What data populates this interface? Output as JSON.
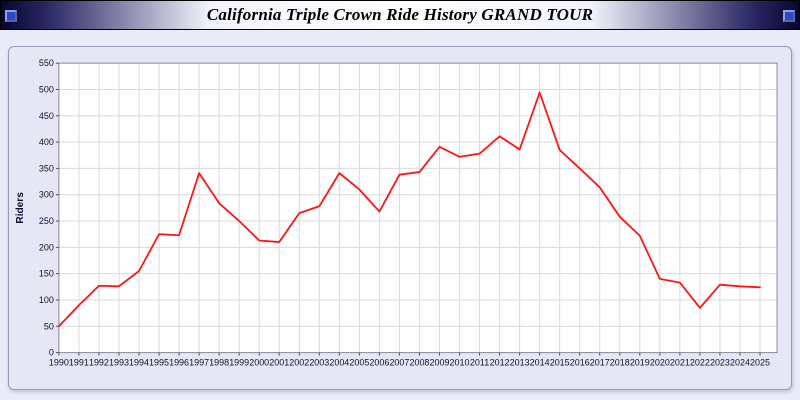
{
  "title_bar": {
    "title": "California Triple Crown Ride History GRAND TOUR"
  },
  "colors": {
    "line": "#ff1515",
    "page_bg": "#ebebf8",
    "panel_bg": "#e6e6f5",
    "plot_bg": "#ffffff",
    "grid": "#d9d9d9",
    "plot_border": "#8a8a9a",
    "tick_text": "#101035",
    "accent_square": "#2d49c8"
  },
  "chart_data": {
    "type": "line",
    "title": "California Triple Crown Ride History GRAND TOUR",
    "xlabel": "",
    "ylabel": "Riders",
    "ylim": [
      0,
      550
    ],
    "ytick_step": 50,
    "grid": true,
    "legend_position": "none",
    "x": [
      1990,
      1991,
      1992,
      1993,
      1994,
      1995,
      1996,
      1997,
      1998,
      1999,
      2000,
      2001,
      2002,
      2003,
      2004,
      2005,
      2006,
      2007,
      2008,
      2009,
      2010,
      2011,
      2012,
      2013,
      2014,
      2015,
      2016,
      2017,
      2018,
      2019,
      2020,
      2021,
      2022,
      2023,
      2024,
      2025
    ],
    "series": [
      {
        "name": "Riders",
        "color": "#ff1515",
        "values": [
          50,
          90,
          127,
          126,
          155,
          225,
          223,
          341,
          284,
          250,
          213,
          210,
          265,
          278,
          341,
          310,
          268,
          338,
          343,
          391,
          372,
          378,
          411,
          386,
          494,
          385,
          350,
          314,
          258,
          222,
          140,
          133,
          85,
          129,
          126,
          124
        ]
      }
    ]
  }
}
